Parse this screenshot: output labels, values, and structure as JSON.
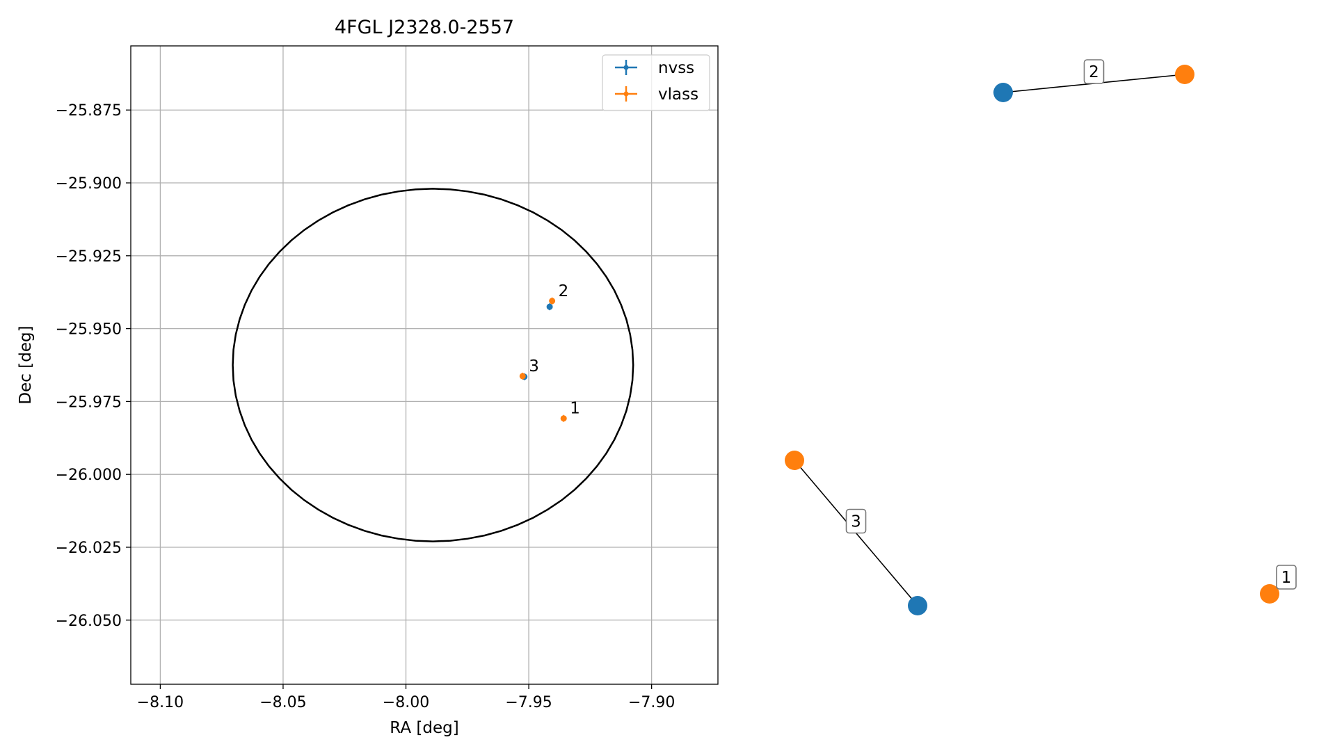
{
  "colors": {
    "nvss": "#1f77b4",
    "vlass": "#ff7f0e",
    "ellipse": "#000000",
    "grid": "#b0b0b0",
    "link": "#000000"
  },
  "chart_data": [
    {
      "type": "scatter",
      "title": "4FGL J2328.0-2557",
      "xlabel": "RA [deg]",
      "ylabel": "Dec [deg]",
      "xlim": [
        -8.112,
        -7.873
      ],
      "ylim": [
        -26.072,
        -25.853
      ],
      "xticks": [
        -8.1,
        -8.05,
        -8.0,
        -7.95,
        -7.9
      ],
      "xtick_labels": [
        "−8.10",
        "−8.05",
        "−8.00",
        "−7.95",
        "−7.90"
      ],
      "yticks": [
        -25.875,
        -25.9,
        -25.925,
        -25.95,
        -25.975,
        -26.0,
        -26.025,
        -26.05
      ],
      "ytick_labels": [
        "−25.875",
        "−25.900",
        "−25.925",
        "−25.950",
        "−25.975",
        "−26.000",
        "−26.025",
        "−26.050"
      ],
      "grid": true,
      "legend_position": "upper-right",
      "legend": [
        "nvss",
        "vlass"
      ],
      "ellipse": {
        "center": [
          -7.989,
          -25.9625
        ],
        "ra_halfwidth": 0.0815,
        "dec_halfheight": 0.0605
      },
      "series": [
        {
          "name": "nvss",
          "points": [
            {
              "x": -7.9415,
              "y": -25.9425
            },
            {
              "x": -7.9518,
              "y": -25.9665
            }
          ]
        },
        {
          "name": "vlass",
          "points": [
            {
              "x": -7.9358,
              "y": -25.9808,
              "label": "1"
            },
            {
              "x": -7.9405,
              "y": -25.9405,
              "label": "2"
            },
            {
              "x": -7.9525,
              "y": -25.9663,
              "label": "3"
            }
          ]
        }
      ]
    },
    {
      "type": "network",
      "nodes": [
        {
          "id": "n2",
          "survey": "nvss"
        },
        {
          "id": "v2",
          "survey": "vlass"
        },
        {
          "id": "v3",
          "survey": "vlass"
        },
        {
          "id": "n3",
          "survey": "nvss"
        },
        {
          "id": "v1",
          "survey": "vlass"
        }
      ],
      "edges": [
        {
          "source": "n2",
          "target": "v2",
          "label": "2"
        },
        {
          "source": "v3",
          "target": "n3",
          "label": "3"
        }
      ],
      "isolated_labels": [
        {
          "node": "v1",
          "label": "1"
        }
      ]
    }
  ]
}
